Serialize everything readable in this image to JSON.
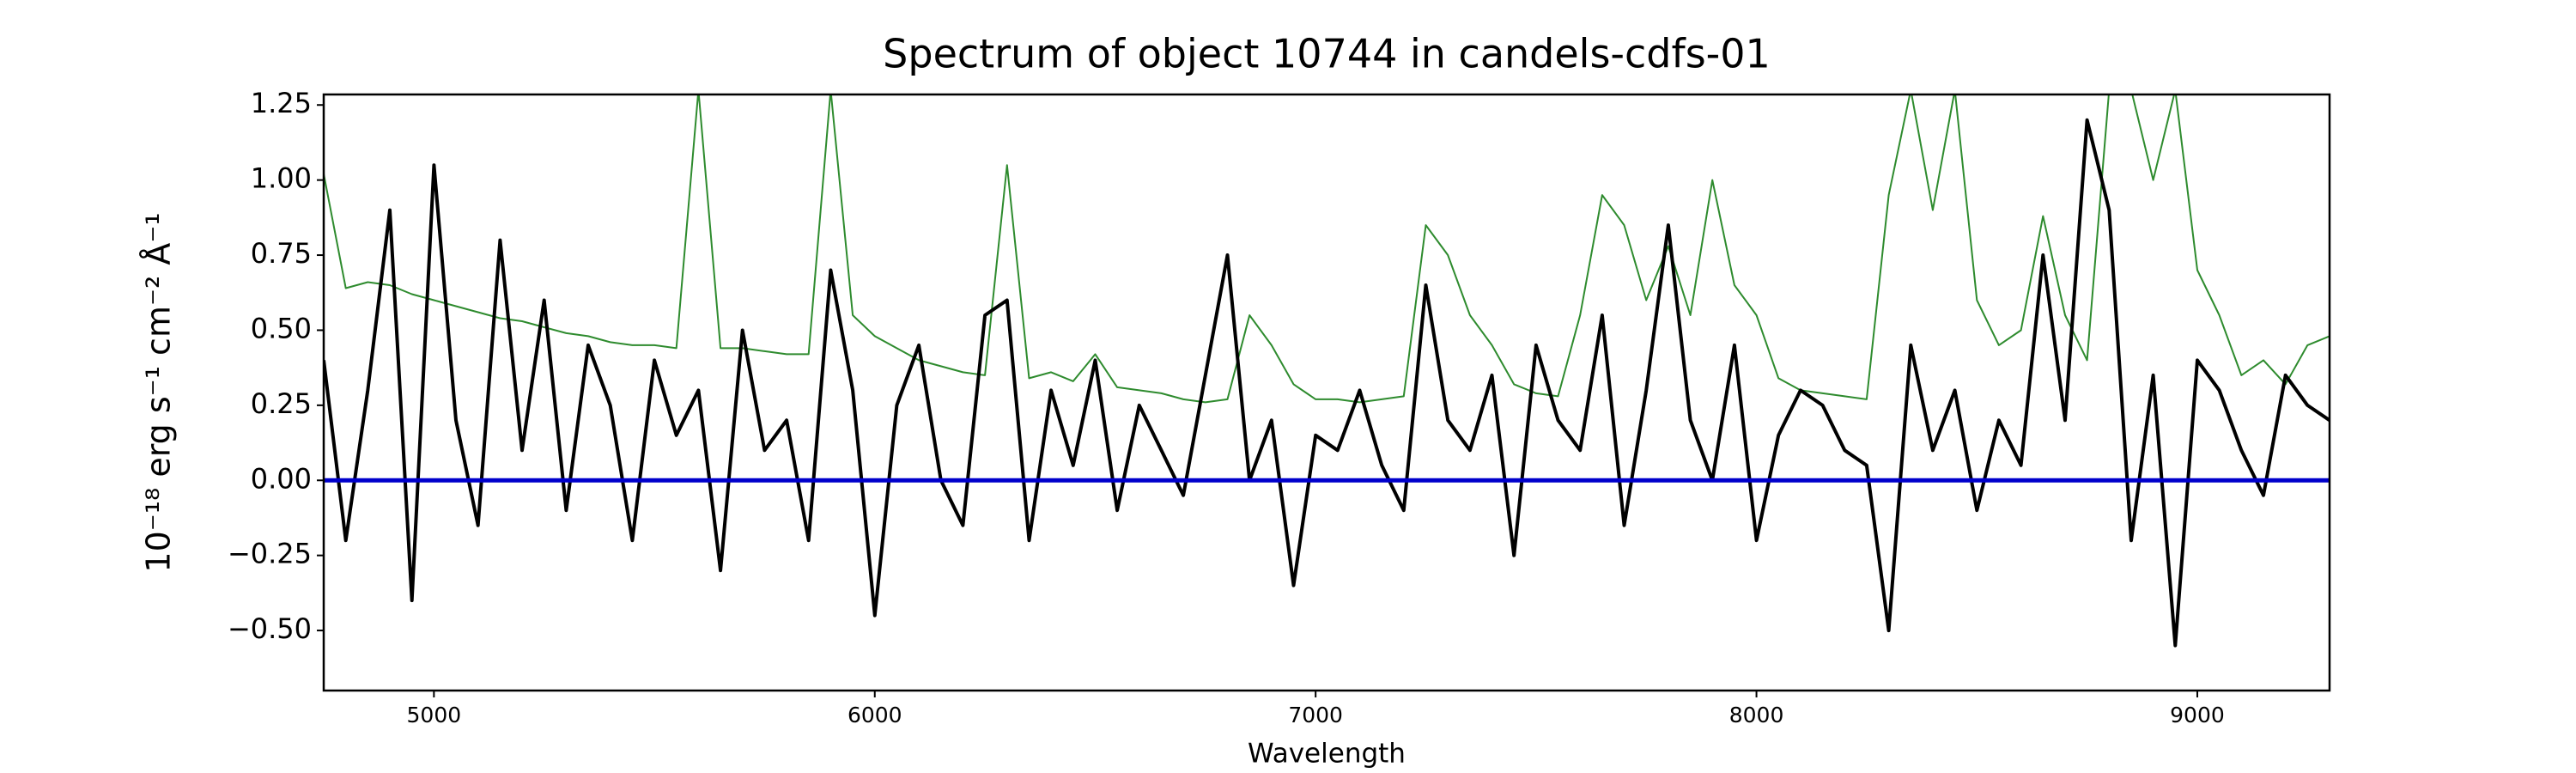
{
  "chart_data": {
    "type": "line",
    "title": "Spectrum of object 10744 in candels-cdfs-01",
    "x_label": "Wavelength",
    "y_label": "10⁻¹⁸ erg s⁻¹ cm⁻² Å⁻¹",
    "x": [
      4750,
      4800,
      4850,
      4900,
      4950,
      5000,
      5050,
      5100,
      5150,
      5200,
      5250,
      5300,
      5350,
      5400,
      5450,
      5500,
      5550,
      5600,
      5650,
      5700,
      5750,
      5800,
      5850,
      5900,
      5950,
      6000,
      6050,
      6100,
      6150,
      6200,
      6250,
      6300,
      6350,
      6400,
      6450,
      6500,
      6550,
      6600,
      6650,
      6700,
      6750,
      6800,
      6850,
      6900,
      6950,
      7000,
      7050,
      7100,
      7150,
      7200,
      7250,
      7300,
      7350,
      7400,
      7450,
      7500,
      7550,
      7600,
      7650,
      7700,
      7750,
      7800,
      7850,
      7900,
      7950,
      8000,
      8050,
      8100,
      8150,
      8200,
      8250,
      8300,
      8350,
      8400,
      8450,
      8500,
      8550,
      8600,
      8650,
      8700,
      8750,
      8800,
      8850,
      8900,
      8950,
      9000,
      9050,
      9100,
      9150,
      9200,
      9250,
      9300
    ],
    "series": [
      {
        "color": "#2e8b2e",
        "width": 2,
        "values": [
          1.02,
          0.64,
          0.66,
          0.65,
          0.62,
          0.6,
          0.58,
          0.56,
          0.54,
          0.53,
          0.51,
          0.49,
          0.48,
          0.46,
          0.45,
          0.45,
          0.44,
          1.3,
          0.44,
          0.44,
          0.43,
          0.42,
          0.42,
          1.3,
          0.55,
          0.48,
          0.44,
          0.4,
          0.38,
          0.36,
          0.35,
          1.05,
          0.34,
          0.36,
          0.33,
          0.42,
          0.31,
          0.3,
          0.29,
          0.27,
          0.26,
          0.27,
          0.55,
          0.45,
          0.32,
          0.27,
          0.27,
          0.26,
          0.27,
          0.28,
          0.85,
          0.75,
          0.55,
          0.45,
          0.32,
          0.29,
          0.28,
          0.55,
          0.95,
          0.85,
          0.6,
          0.78,
          0.55,
          1.0,
          0.65,
          0.55,
          0.34,
          0.3,
          0.29,
          0.28,
          0.27,
          0.95,
          1.3,
          0.9,
          1.3,
          0.6,
          0.45,
          0.5,
          0.88,
          0.55,
          0.4,
          1.3,
          1.3,
          1.0,
          1.3,
          0.7,
          0.55,
          0.35,
          0.4,
          0.32,
          0.45,
          0.48
        ]
      },
      {
        "color": "#000000",
        "width": 4,
        "values": [
          0.4,
          -0.2,
          0.3,
          0.9,
          -0.4,
          1.05,
          0.2,
          -0.15,
          0.8,
          0.1,
          0.6,
          -0.1,
          0.45,
          0.25,
          -0.2,
          0.4,
          0.15,
          0.3,
          -0.3,
          0.5,
          0.1,
          0.2,
          -0.2,
          0.7,
          0.3,
          -0.45,
          0.25,
          0.45,
          0.0,
          -0.15,
          0.55,
          0.6,
          -0.2,
          0.3,
          0.05,
          0.4,
          -0.1,
          0.25,
          0.1,
          -0.05,
          0.35,
          0.75,
          0.0,
          0.2,
          -0.35,
          0.15,
          0.1,
          0.3,
          0.05,
          -0.1,
          0.65,
          0.2,
          0.1,
          0.35,
          -0.25,
          0.45,
          0.2,
          0.1,
          0.55,
          -0.15,
          0.3,
          0.85,
          0.2,
          0.0,
          0.45,
          -0.2,
          0.15,
          0.3,
          0.25,
          0.1,
          0.05,
          -0.5,
          0.45,
          0.1,
          0.3,
          -0.1,
          0.2,
          0.05,
          0.75,
          0.2,
          1.2,
          0.9,
          -0.2,
          0.35,
          -0.55,
          0.4,
          0.3,
          0.1,
          -0.05,
          0.35,
          0.25,
          0.2
        ]
      },
      {
        "color": "#0000cc",
        "width": 5,
        "values": [
          0,
          0,
          0,
          0,
          0,
          0,
          0,
          0,
          0,
          0,
          0,
          0,
          0,
          0,
          0,
          0,
          0,
          0,
          0,
          0,
          0,
          0,
          0,
          0,
          0,
          0,
          0,
          0,
          0,
          0,
          0,
          0,
          0,
          0,
          0,
          0,
          0,
          0,
          0,
          0,
          0,
          0,
          0,
          0,
          0,
          0,
          0,
          0,
          0,
          0,
          0,
          0,
          0,
          0,
          0,
          0,
          0,
          0,
          0,
          0,
          0,
          0,
          0,
          0,
          0,
          0,
          0,
          0,
          0,
          0,
          0,
          0,
          0,
          0,
          0,
          0,
          0,
          0,
          0,
          0,
          0,
          0,
          0,
          0,
          0,
          0,
          0,
          0,
          0,
          0,
          0,
          0
        ]
      }
    ],
    "xlim": [
      4750,
      9300
    ],
    "xticks": [
      5000,
      6000,
      7000,
      8000,
      9000
    ],
    "ylim": [
      -0.7,
      1.285
    ],
    "yticks": [
      {
        "value": -0.5,
        "label": "−0.50"
      },
      {
        "value": -0.25,
        "label": "−0.25"
      },
      {
        "value": 0,
        "label": "0.00"
      },
      {
        "value": 0.25,
        "label": "0.25"
      },
      {
        "value": 0.5,
        "label": "0.50"
      },
      {
        "value": 0.75,
        "label": "0.75"
      },
      {
        "value": 1.0,
        "label": "1.00"
      },
      {
        "value": 1.25,
        "label": "1.25"
      }
    ]
  }
}
